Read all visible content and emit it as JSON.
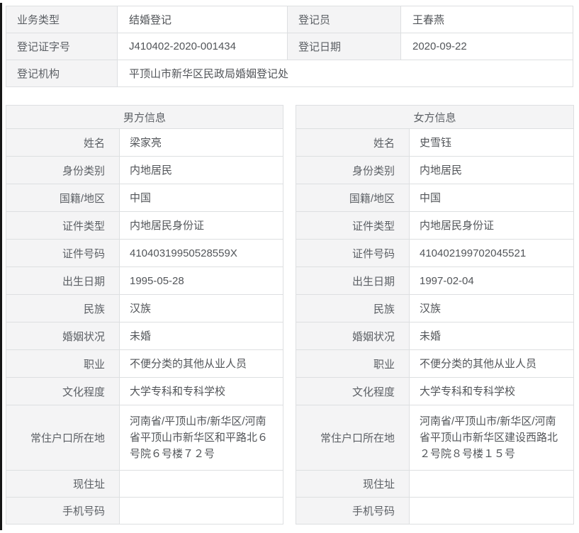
{
  "colors": {
    "label_bg": "#f4f4f5",
    "border": "#dddfe1",
    "label_text": "#5c6065",
    "value_text": "#525559",
    "edge_line": "#161616"
  },
  "registration": {
    "rows": [
      {
        "label1": "业务类型",
        "value1": "结婚登记",
        "label2": "登记员",
        "value2": "王春燕"
      },
      {
        "label1": "登记证字号",
        "value1": "J410402-2020-001434",
        "label2": "登记日期",
        "value2": "2020-09-22"
      },
      {
        "label1": "登记机构",
        "value1": "平顶山市新华区民政局婚姻登记处"
      }
    ]
  },
  "person_tables": [
    {
      "title": "男方信息",
      "fields": [
        {
          "label": "姓名",
          "value": "梁家亮"
        },
        {
          "label": "身份类别",
          "value": "内地居民"
        },
        {
          "label": "国籍/地区",
          "value": "中国"
        },
        {
          "label": "证件类型",
          "value": "内地居民身份证"
        },
        {
          "label": "证件号码",
          "value": "41040319950528559X"
        },
        {
          "label": "出生日期",
          "value": "1995-05-28"
        },
        {
          "label": "民族",
          "value": "汉族"
        },
        {
          "label": "婚姻状况",
          "value": "未婚"
        },
        {
          "label": "职业",
          "value": "不便分类的其他从业人员"
        },
        {
          "label": "文化程度",
          "value": "大学专科和专科学校"
        },
        {
          "label": "常住户口所在地",
          "value": "河南省/平顶山市/新华区/河南省平顶山市新华区和平路北６号院６号楼７２号"
        },
        {
          "label": "现住址",
          "value": ""
        },
        {
          "label": "手机号码",
          "value": ""
        }
      ]
    },
    {
      "title": "女方信息",
      "fields": [
        {
          "label": "姓名",
          "value": "史雪钰"
        },
        {
          "label": "身份类别",
          "value": "内地居民"
        },
        {
          "label": "国籍/地区",
          "value": "中国"
        },
        {
          "label": "证件类型",
          "value": "内地居民身份证"
        },
        {
          "label": "证件号码",
          "value": "410402199702045521"
        },
        {
          "label": "出生日期",
          "value": "1997-02-04"
        },
        {
          "label": "民族",
          "value": "汉族"
        },
        {
          "label": "婚姻状况",
          "value": "未婚"
        },
        {
          "label": "职业",
          "value": "不便分类的其他从业人员"
        },
        {
          "label": "文化程度",
          "value": "大学专科和专科学校"
        },
        {
          "label": "常住户口所在地",
          "value": "河南省/平顶山市/新华区/河南省平顶山市新华区建设西路北２号院８号楼１５号"
        },
        {
          "label": "现住址",
          "value": ""
        },
        {
          "label": "手机号码",
          "value": ""
        }
      ]
    }
  ]
}
